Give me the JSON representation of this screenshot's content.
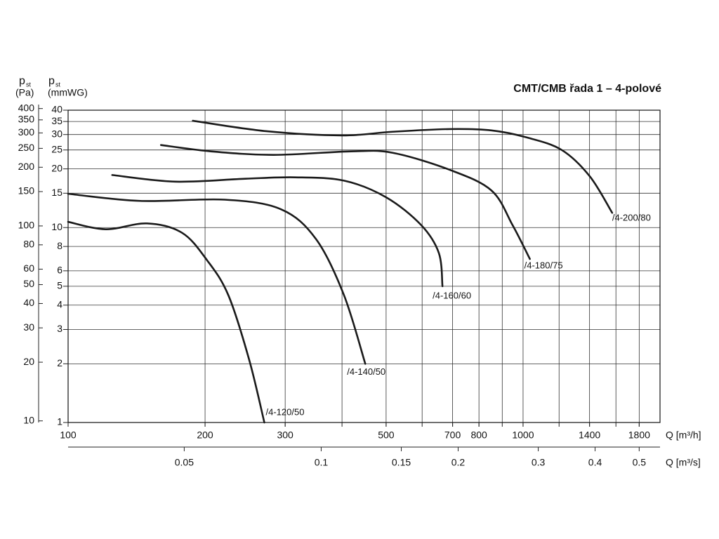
{
  "chart_data": {
    "type": "line",
    "title": "CMT/CMB řada 1 – 4-polové",
    "y_symbol": "p",
    "y_subscript": "st",
    "y_label": "(mmWG)",
    "y2_label": "(Pa)",
    "x_label": "Q [m³/h]",
    "x2_label": "Q [m³/s]",
    "xscale": "log",
    "yscale": "log",
    "xlim": [
      100,
      2000
    ],
    "ylim": [
      1,
      40
    ],
    "y2lim": [
      9.81,
      392.4
    ],
    "x2lim": [
      0.02778,
      0.5556
    ],
    "xticks": [
      100,
      200,
      300,
      500,
      700,
      800,
      1000,
      1400,
      1800
    ],
    "xgrid": [
      200,
      300,
      400,
      500,
      600,
      700,
      800,
      900,
      1000,
      1200,
      1400,
      1600,
      1800
    ],
    "yticks": [
      1,
      2,
      3,
      4,
      5,
      6,
      8,
      10,
      15,
      20,
      25,
      30,
      35,
      40
    ],
    "y2ticks": [
      10,
      20,
      30,
      40,
      50,
      60,
      80,
      100,
      150,
      200,
      250,
      300,
      350,
      400
    ],
    "x2ticks": [
      0.05,
      0.1,
      0.15,
      0.2,
      0.3,
      0.4,
      0.5
    ],
    "grid": true,
    "series": [
      {
        "name": "/4-120/50",
        "color": "#1a1a1a",
        "x": [
          100,
          121,
          149,
          178,
          202,
          225,
          250,
          270
        ],
        "values": [
          10.7,
          9.8,
          10.5,
          9.4,
          6.8,
          4.5,
          2.1,
          1.0
        ]
      },
      {
        "name": "/4-140/50",
        "color": "#1a1a1a",
        "x": [
          100,
          144,
          221,
          294,
          351,
          404,
          450
        ],
        "values": [
          14.9,
          13.7,
          13.9,
          12.4,
          8.7,
          4.5,
          2.0
        ]
      },
      {
        "name": "/4-160/60",
        "color": "#1a1a1a",
        "x": [
          125,
          172,
          245,
          315,
          404,
          500,
          597,
          653,
          665
        ],
        "values": [
          18.6,
          17.2,
          17.8,
          18.1,
          17.4,
          14.3,
          10.3,
          7.4,
          5.0
        ]
      },
      {
        "name": "/4-180/75",
        "color": "#1a1a1a",
        "x": [
          160,
          206,
          283,
          419,
          516,
          689,
          852,
          948,
          1035
        ],
        "values": [
          26.5,
          24.6,
          23.6,
          24.6,
          24.2,
          19.8,
          15.5,
          10.3,
          6.9
        ]
      },
      {
        "name": "/4-200/80",
        "color": "#1a1a1a",
        "x": [
          188,
          273,
          400,
          516,
          689,
          852,
          1018,
          1216,
          1402,
          1570
        ],
        "values": [
          35.3,
          31.2,
          29.7,
          31.0,
          32.0,
          31.5,
          29.0,
          25.0,
          18.3,
          11.9
        ]
      }
    ]
  }
}
